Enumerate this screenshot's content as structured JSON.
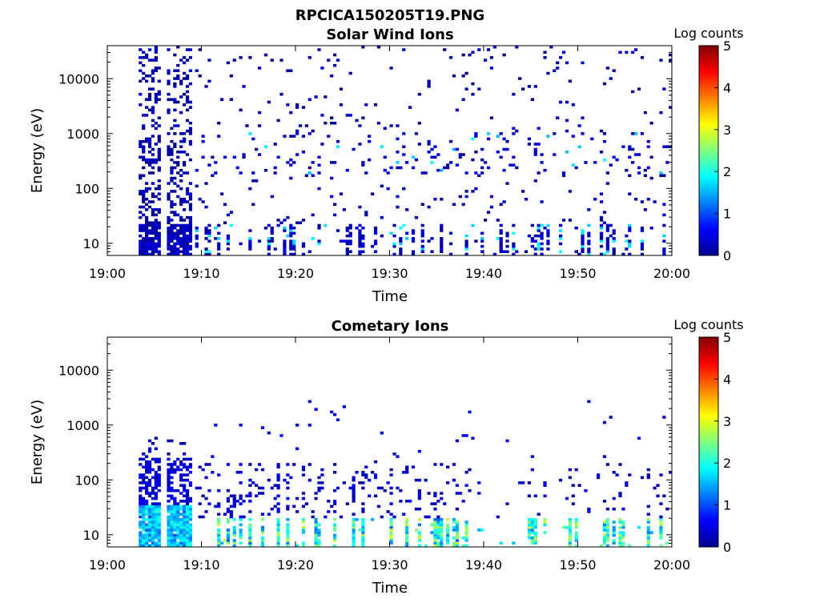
{
  "figure_title": "RPCICA150205T19.PNG",
  "chart_data": [
    {
      "type": "heatmap",
      "title": "Solar Wind Ions",
      "xlabel": "Time",
      "ylabel": "Energy (eV)",
      "x_ticks": [
        "19:00",
        "19:10",
        "19:20",
        "19:30",
        "19:40",
        "19:50",
        "20:00"
      ],
      "xlim_minutes": [
        0,
        60
      ],
      "y_ticks": [
        10,
        100,
        1000,
        10000
      ],
      "ylim": [
        6,
        40000
      ],
      "y_scale": "log",
      "colorbar": {
        "label": "Log counts",
        "min": 0,
        "max": 5,
        "ticks": [
          0,
          1,
          2,
          3,
          4,
          5
        ],
        "colormap": "jet"
      },
      "seed": 7,
      "profile": "solar_wind"
    },
    {
      "type": "heatmap",
      "title": "Cometary Ions",
      "xlabel": "Time",
      "ylabel": "Energy (eV)",
      "x_ticks": [
        "19:00",
        "19:10",
        "19:20",
        "19:30",
        "19:40",
        "19:50",
        "20:00"
      ],
      "xlim_minutes": [
        0,
        60
      ],
      "y_ticks": [
        10,
        100,
        1000,
        10000
      ],
      "ylim": [
        6,
        40000
      ],
      "y_scale": "log",
      "colorbar": {
        "label": "Log counts",
        "min": 0,
        "max": 5,
        "ticks": [
          0,
          1,
          2,
          3,
          4,
          5
        ],
        "colormap": "jet"
      },
      "seed": 19,
      "profile": "cometary"
    }
  ]
}
